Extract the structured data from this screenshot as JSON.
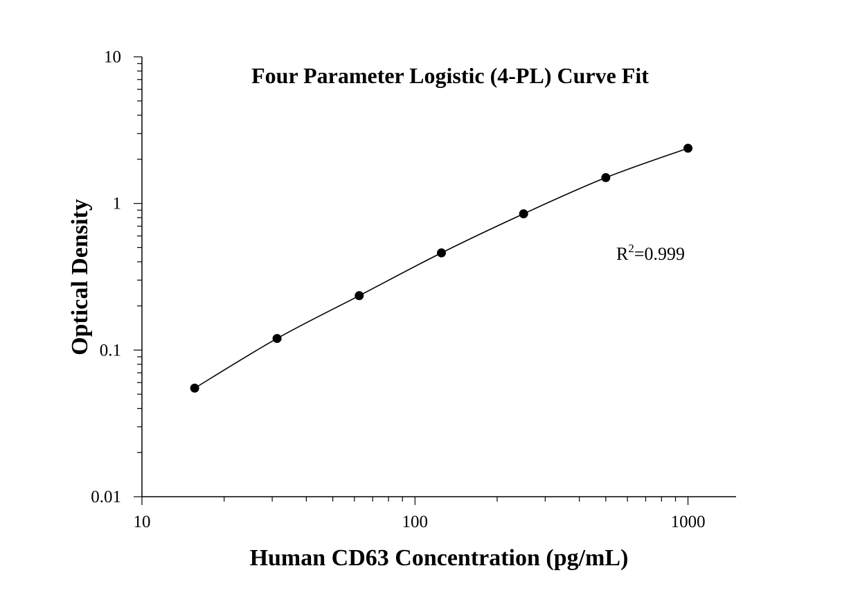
{
  "chart_data": {
    "type": "scatter",
    "title": "Four Parameter Logistic (4-PL) Curve Fit",
    "xlabel": "Human CD63 Concentration (pg/mL)",
    "ylabel": "Optical Density",
    "x_scale": "log",
    "y_scale": "log",
    "xlim": [
      10,
      1500
    ],
    "ylim": [
      0.01,
      10
    ],
    "x_ticks": [
      {
        "value": 10,
        "label": "10"
      },
      {
        "value": 100,
        "label": "100"
      },
      {
        "value": 1000,
        "label": "1000"
      }
    ],
    "y_ticks": [
      {
        "value": 0.01,
        "label": "0.01"
      },
      {
        "value": 0.1,
        "label": "0.1"
      },
      {
        "value": 1,
        "label": "1"
      },
      {
        "value": 10,
        "label": "10"
      }
    ],
    "grid": false,
    "series": [
      {
        "points": [
          {
            "x": 15.6,
            "y": 0.055
          },
          {
            "x": 31.25,
            "y": 0.12
          },
          {
            "x": 62.5,
            "y": 0.235
          },
          {
            "x": 125,
            "y": 0.46
          },
          {
            "x": 250,
            "y": 0.85
          },
          {
            "x": 500,
            "y": 1.5
          },
          {
            "x": 1000,
            "y": 2.38
          }
        ]
      }
    ],
    "annotation": {
      "r2_prefix": "R",
      "r2_superscript": "2",
      "r2_value": "=0.999"
    }
  }
}
